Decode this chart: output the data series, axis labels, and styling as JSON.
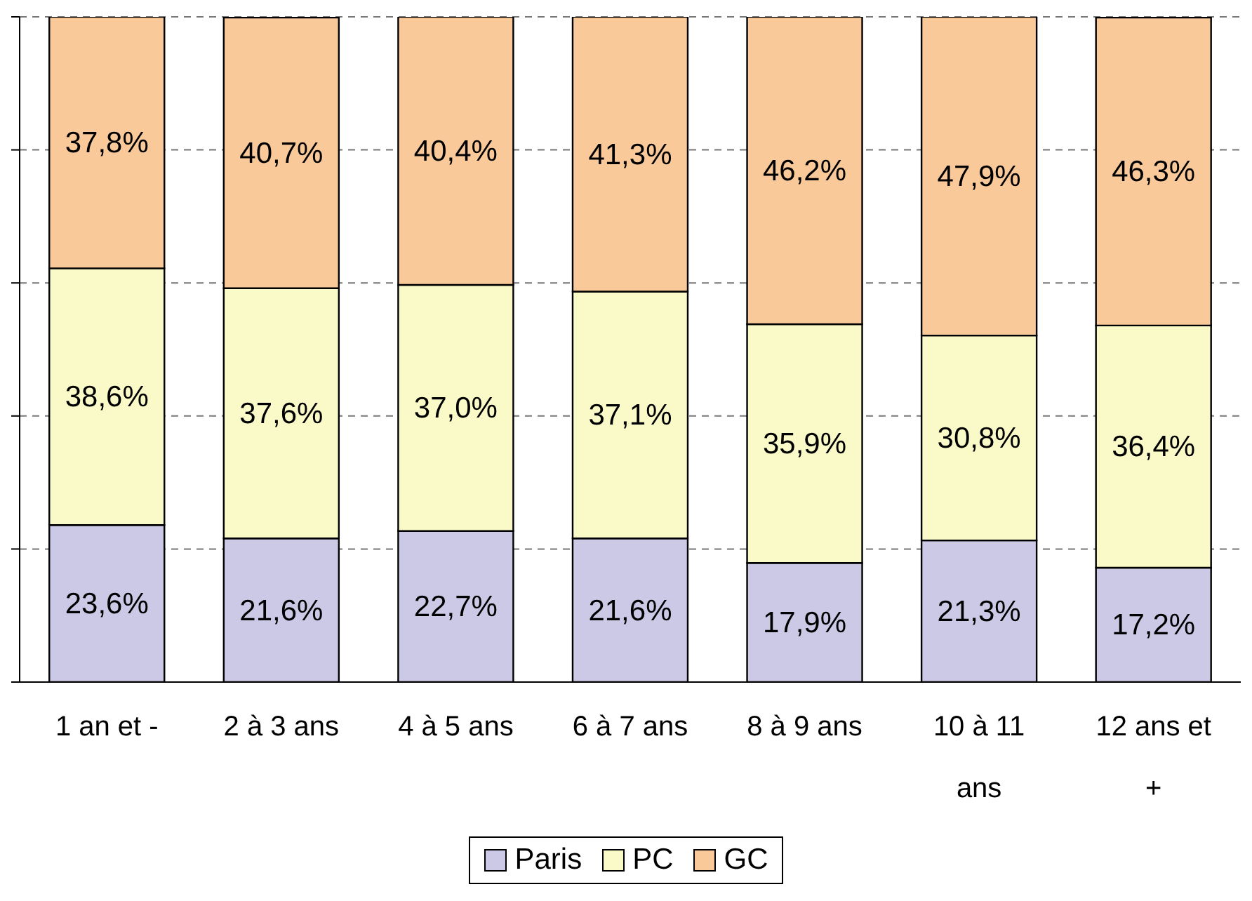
{
  "chart_data": {
    "type": "bar",
    "stacked": true,
    "categories": [
      "1 an et -",
      "2 à 3 ans",
      "4 à 5 ans",
      "6 à 7 ans",
      "8 à 9 ans",
      "10 à 11 ans",
      "12 ans et +"
    ],
    "series": [
      {
        "name": "Paris",
        "color": "#ccc9e6",
        "values": [
          23.6,
          21.6,
          22.7,
          21.6,
          17.9,
          21.3,
          17.2
        ],
        "value_labels": [
          "23,6%",
          "21,6%",
          "22,7%",
          "21,6%",
          "17,9%",
          "21,3%",
          "17,2%"
        ]
      },
      {
        "name": "PC",
        "color": "#fafac8",
        "values": [
          38.6,
          37.6,
          37.0,
          37.1,
          35.9,
          30.8,
          36.4
        ],
        "value_labels": [
          "38,6%",
          "37,6%",
          "37,0%",
          "37,1%",
          "35,9%",
          "30,8%",
          "36,4%"
        ]
      },
      {
        "name": "GC",
        "color": "#f9c99a",
        "values": [
          37.8,
          40.7,
          40.4,
          41.3,
          46.2,
          47.9,
          46.3
        ],
        "value_labels": [
          "37,8%",
          "40,7%",
          "40,4%",
          "41,3%",
          "46,2%",
          "47,9%",
          "46,3%"
        ]
      }
    ],
    "ylim": [
      0,
      100
    ],
    "yticks": [
      0,
      20,
      40,
      60,
      80,
      100
    ],
    "tick_labels": "x",
    "grid": "y",
    "legend": "bottom"
  }
}
